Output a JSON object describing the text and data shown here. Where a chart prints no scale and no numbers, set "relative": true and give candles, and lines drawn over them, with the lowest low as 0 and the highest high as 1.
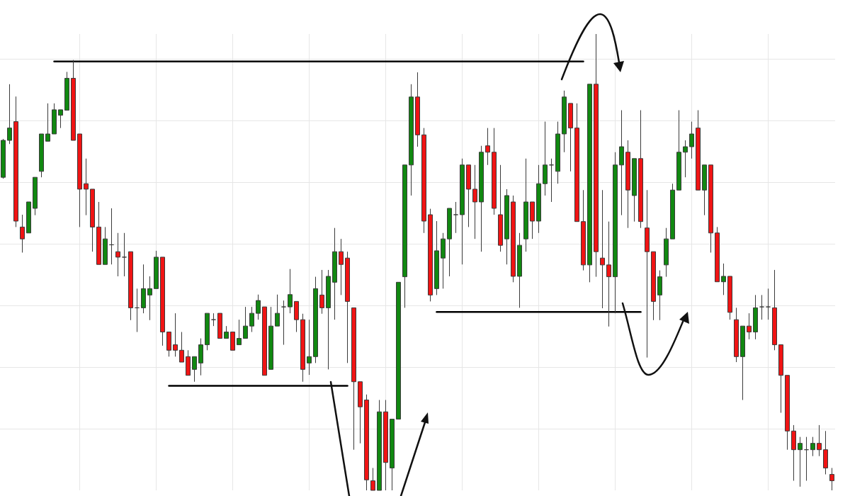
{
  "chart_data": {
    "type": "candlestick",
    "relative": true,
    "grid": true,
    "categories": [
      null,
      null,
      null,
      null,
      null,
      null,
      null,
      null,
      null,
      null,
      null,
      null,
      null,
      null,
      null,
      null,
      null,
      null,
      null,
      null,
      null,
      null,
      null,
      null,
      null,
      null,
      null,
      null,
      null,
      null,
      null,
      null,
      null,
      null,
      null,
      null,
      null,
      null,
      null,
      null,
      null,
      null,
      null,
      null,
      null,
      null,
      null,
      null,
      null,
      null,
      null,
      null,
      null,
      null,
      null,
      null,
      null,
      null,
      null,
      null,
      null,
      null,
      null,
      null,
      null,
      null,
      null,
      null,
      null,
      null,
      null,
      null,
      null,
      null,
      null,
      null,
      null,
      null,
      null,
      null,
      null,
      null,
      null,
      null,
      null,
      null,
      null,
      null,
      null,
      null,
      null,
      null,
      null,
      null,
      null,
      null,
      null,
      null,
      null,
      null,
      null,
      null,
      null,
      null,
      null,
      null,
      null,
      null,
      null,
      null,
      null,
      null,
      null,
      null,
      null,
      null,
      null,
      null,
      null,
      null,
      null,
      null,
      null,
      null,
      null,
      null,
      null,
      null,
      null,
      null,
      null
    ],
    "ohlc": [
      [
        0.686,
        0.77,
        0.683,
        0.767
      ],
      [
        0.767,
        0.89,
        0.759,
        0.794
      ],
      [
        0.808,
        0.863,
        0.577,
        0.59
      ],
      [
        0.577,
        0.604,
        0.521,
        0.551
      ],
      [
        0.564,
        0.632,
        0.564,
        0.632
      ],
      [
        0.618,
        0.686,
        0.603,
        0.686
      ],
      [
        0.699,
        0.781,
        0.686,
        0.781
      ],
      [
        0.765,
        0.848,
        0.765,
        0.781
      ],
      [
        0.781,
        0.848,
        0.781,
        0.834
      ],
      [
        0.822,
        0.834,
        0.794,
        0.834
      ],
      [
        0.833,
        0.917,
        0.833,
        0.903
      ],
      [
        0.903,
        0.943,
        0.767,
        0.767
      ],
      [
        0.781,
        0.781,
        0.577,
        0.66
      ],
      [
        0.672,
        0.727,
        0.603,
        0.66
      ],
      [
        0.66,
        0.66,
        0.523,
        0.577
      ],
      [
        0.577,
        0.632,
        0.495,
        0.495
      ],
      [
        0.495,
        0.577,
        0.495,
        0.551
      ],
      [
        0.538,
        0.618,
        0.495,
        0.538
      ],
      [
        0.523,
        0.564,
        0.469,
        0.511
      ],
      [
        0.511,
        0.564,
        0.469,
        0.511
      ],
      [
        0.523,
        0.523,
        0.373,
        0.4
      ],
      [
        0.4,
        0.442,
        0.347,
        0.4
      ],
      [
        0.4,
        0.495,
        0.388,
        0.442
      ],
      [
        0.428,
        0.469,
        0.373,
        0.442
      ],
      [
        0.442,
        0.525,
        0.442,
        0.511
      ],
      [
        0.511,
        0.511,
        0.317,
        0.347
      ],
      [
        0.347,
        0.347,
        0.293,
        0.307
      ],
      [
        0.319,
        0.388,
        0.293,
        0.307
      ],
      [
        0.307,
        0.347,
        0.281,
        0.281
      ],
      [
        0.293,
        0.307,
        0.252,
        0.252
      ],
      [
        0.265,
        0.293,
        0.238,
        0.293
      ],
      [
        0.279,
        0.333,
        0.252,
        0.319
      ],
      [
        0.319,
        0.388,
        0.307,
        0.388
      ],
      [
        0.374,
        0.388,
        0.36,
        0.374
      ],
      [
        0.388,
        0.388,
        0.333,
        0.333
      ],
      [
        0.333,
        0.36,
        0.333,
        0.347
      ],
      [
        0.347,
        0.347,
        0.307,
        0.307
      ],
      [
        0.319,
        0.374,
        0.319,
        0.333
      ],
      [
        0.333,
        0.402,
        0.333,
        0.36
      ],
      [
        0.36,
        0.402,
        0.347,
        0.388
      ],
      [
        0.388,
        0.429,
        0.374,
        0.416
      ],
      [
        0.402,
        0.402,
        0.252,
        0.252
      ],
      [
        0.265,
        0.402,
        0.265,
        0.36
      ],
      [
        0.36,
        0.429,
        0.36,
        0.388
      ],
      [
        0.402,
        0.416,
        0.319,
        0.402
      ],
      [
        0.402,
        0.485,
        0.388,
        0.429
      ],
      [
        0.414,
        0.414,
        0.347,
        0.374
      ],
      [
        0.374,
        0.387,
        0.238,
        0.265
      ],
      [
        0.279,
        0.374,
        0.253,
        0.293
      ],
      [
        0.293,
        0.468,
        0.279,
        0.442
      ],
      [
        0.428,
        0.483,
        0.387,
        0.4
      ],
      [
        0.4,
        0.483,
        0.265,
        0.469
      ],
      [
        0.456,
        0.575,
        0.374,
        0.523
      ],
      [
        0.523,
        0.551,
        0.428,
        0.495
      ],
      [
        0.509,
        0.523,
        0.279,
        0.414
      ],
      [
        0.4,
        0.4,
        0.089,
        0.238
      ],
      [
        0.238,
        0.238,
        0.103,
        0.183
      ],
      [
        0.198,
        0.21,
        0,
        0.023
      ],
      [
        0.021,
        0.049,
        0,
        0
      ],
      [
        0,
        0.198,
        0,
        0.172
      ],
      [
        0.172,
        0.198,
        0,
        0.061
      ],
      [
        0.049,
        0.156,
        0,
        0.156
      ],
      [
        0.156,
        0.456,
        0.156,
        0.456
      ],
      [
        0.468,
        0.713,
        0.4,
        0.713
      ],
      [
        0.713,
        0.89,
        0.646,
        0.862
      ],
      [
        0.862,
        0.916,
        0.753,
        0.779
      ],
      [
        0.779,
        0.794,
        0.564,
        0.59
      ],
      [
        0.604,
        0.617,
        0.414,
        0.428
      ],
      [
        0.442,
        0.59,
        0.428,
        0.525
      ],
      [
        0.509,
        0.564,
        0.442,
        0.551
      ],
      [
        0.551,
        0.618,
        0.469,
        0.618
      ],
      [
        0.604,
        0.632,
        0.564,
        0.604
      ],
      [
        0.604,
        0.727,
        0.495,
        0.713
      ],
      [
        0.713,
        0.713,
        0.577,
        0.66
      ],
      [
        0.66,
        0.713,
        0.551,
        0.632
      ],
      [
        0.632,
        0.755,
        0.523,
        0.741
      ],
      [
        0.755,
        0.794,
        0.713,
        0.741
      ],
      [
        0.741,
        0.794,
        0.604,
        0.618
      ],
      [
        0.604,
        0.713,
        0.523,
        0.537
      ],
      [
        0.551,
        0.66,
        0.495,
        0.646
      ],
      [
        0.632,
        0.646,
        0.456,
        0.469
      ],
      [
        0.469,
        0.564,
        0.4,
        0.537
      ],
      [
        0.551,
        0.727,
        0.523,
        0.632
      ],
      [
        0.632,
        0.632,
        0.551,
        0.59
      ],
      [
        0.59,
        0.713,
        0.564,
        0.672
      ],
      [
        0.672,
        0.808,
        0.646,
        0.713
      ],
      [
        0.713,
        0.727,
        0.632,
        0.713
      ],
      [
        0.699,
        0.808,
        0.672,
        0.781
      ],
      [
        0.781,
        0.876,
        0.741,
        0.862
      ],
      [
        0.848,
        0.848,
        0.699,
        0.794
      ],
      [
        0.794,
        0.848,
        0.589,
        0.589
      ],
      [
        0.589,
        0.658,
        0.482,
        0.494
      ],
      [
        0.494,
        0.89,
        0.456,
        0.89
      ],
      [
        0.89,
        1,
        0.468,
        0.523
      ],
      [
        0.509,
        0.658,
        0.399,
        0.494
      ],
      [
        0.494,
        0.589,
        0.359,
        0.468
      ],
      [
        0.468,
        0.741,
        0.388,
        0.713
      ],
      [
        0.713,
        0.833,
        0.603,
        0.753
      ],
      [
        0.741,
        0.767,
        0.575,
        0.658
      ],
      [
        0.646,
        0.727,
        0.589,
        0.727
      ],
      [
        0.727,
        0.833,
        0.575,
        0.589
      ],
      [
        0.575,
        0.658,
        0.291,
        0.523
      ],
      [
        0.523,
        0.523,
        0.373,
        0.414
      ],
      [
        0.428,
        0.482,
        0.373,
        0.468
      ],
      [
        0.494,
        0.575,
        0.468,
        0.551
      ],
      [
        0.551,
        0.672,
        0.551,
        0.658
      ],
      [
        0.658,
        0.833,
        0.658,
        0.741
      ],
      [
        0.741,
        0.767,
        0.686,
        0.753
      ],
      [
        0.753,
        0.808,
        0.727,
        0.781
      ],
      [
        0.794,
        0.833,
        0.658,
        0.658
      ],
      [
        0.658,
        0.713,
        0.603,
        0.713
      ],
      [
        0.713,
        0.713,
        0.521,
        0.564
      ],
      [
        0.564,
        0.577,
        0.457,
        0.457
      ],
      [
        0.457,
        0.497,
        0.428,
        0.469
      ],
      [
        0.469,
        0.469,
        0.374,
        0.39
      ],
      [
        0.374,
        0.4,
        0.281,
        0.293
      ],
      [
        0.293,
        0.36,
        0.198,
        0.36
      ],
      [
        0.36,
        0.388,
        0.331,
        0.347
      ],
      [
        0.347,
        0.428,
        0.331,
        0.4
      ],
      [
        0.402,
        0.428,
        0.374,
        0.402
      ],
      [
        0.402,
        0.442,
        0.374,
        0.402
      ],
      [
        0.4,
        0.483,
        0.307,
        0.319
      ],
      [
        0.319,
        0.319,
        0.17,
        0.252
      ],
      [
        0.252,
        0.252,
        0.089,
        0.13
      ],
      [
        0.13,
        0.143,
        0.021,
        0.089
      ],
      [
        0.089,
        0.117,
        0.008,
        0.103
      ],
      [
        0.089,
        0.117,
        0.021,
        0.089
      ],
      [
        0.089,
        0.117,
        0.075,
        0.103
      ],
      [
        0.103,
        0.143,
        0.075,
        0.089
      ],
      [
        0.089,
        0.13,
        0.035,
        0.049
      ],
      [
        0.035,
        0.049,
        0,
        0.021
      ]
    ],
    "colors": [
      "#118811",
      "#118811",
      "#f01414",
      "#f01414",
      "#118811",
      "#118811",
      "#118811",
      "#118811",
      "#118811",
      "#118811",
      "#118811",
      "#f01414",
      "#f01414",
      "#f01414",
      "#f01414",
      "#f01414",
      "#118811",
      "#3a3a3a",
      "#f01414",
      "#3a3a3a",
      "#f01414",
      "#3a3a3a",
      "#118811",
      "#118811",
      "#118811",
      "#f01414",
      "#f01414",
      "#f01414",
      "#f01414",
      "#f01414",
      "#118811",
      "#118811",
      "#118811",
      "#3a3a3a",
      "#f01414",
      "#118811",
      "#f01414",
      "#118811",
      "#118811",
      "#118811",
      "#118811",
      "#f01414",
      "#118811",
      "#118811",
      "#3a3a3a",
      "#118811",
      "#f01414",
      "#f01414",
      "#118811",
      "#118811",
      "#f01414",
      "#118811",
      "#118811",
      "#f01414",
      "#f01414",
      "#f01414",
      "#f01414",
      "#f01414",
      "#f01414",
      "#118811",
      "#f01414",
      "#118811",
      "#118811",
      "#118811",
      "#118811",
      "#f01414",
      "#f01414",
      "#f01414",
      "#118811",
      "#118811",
      "#118811",
      "#3a3a3a",
      "#118811",
      "#f01414",
      "#f01414",
      "#118811",
      "#f01414",
      "#f01414",
      "#f01414",
      "#118811",
      "#f01414",
      "#118811",
      "#118811",
      "#f01414",
      "#118811",
      "#118811",
      "#3a3a3a",
      "#118811",
      "#118811",
      "#f01414",
      "#f01414",
      "#f01414",
      "#118811",
      "#f01414",
      "#f01414",
      "#f01414",
      "#118811",
      "#118811",
      "#f01414",
      "#118811",
      "#f01414",
      "#f01414",
      "#f01414",
      "#118811",
      "#118811",
      "#118811",
      "#118811",
      "#118811",
      "#118811",
      "#f01414",
      "#118811",
      "#f01414",
      "#f01414",
      "#118811",
      "#f01414",
      "#f01414",
      "#118811",
      "#f01414",
      "#118811",
      "#3a3a3a",
      "#3a3a3a",
      "#f01414",
      "#f01414",
      "#f01414",
      "#f01414",
      "#118811",
      "#3a3a3a",
      "#118811",
      "#f01414",
      "#f01414",
      "#f01414"
    ],
    "series": [
      {
        "type": "line",
        "color": "#000000",
        "values": [
          null,
          null,
          null,
          null,
          null,
          null,
          null,
          null,
          0.94,
          0.94,
          0.94,
          0.94,
          0.94,
          0.94,
          0.94,
          0.94,
          0.94,
          0.94,
          0.94,
          0.94,
          0.94,
          0.94,
          0.94,
          0.94,
          0.94,
          0.94,
          0.94,
          0.94,
          0.94,
          0.94,
          0.94,
          0.94,
          0.94,
          0.94,
          0.94,
          0.94,
          0.94,
          0.94,
          0.94,
          0.94,
          0.94,
          0.94,
          0.94,
          0.94,
          0.94,
          0.94,
          0.94,
          0.94,
          0.94,
          0.94,
          0.94,
          0.94,
          0.94,
          0.94,
          0.94,
          0.94,
          0.94,
          0.94,
          0.94,
          0.94,
          0.94,
          0.94,
          0.94,
          0.94,
          0.94,
          0.94,
          0.94,
          0.94,
          0.94,
          0.94,
          0.94,
          0.94,
          0.94,
          0.94,
          0.94,
          0.94,
          0.94,
          0.94,
          0.94,
          0.94,
          0.94,
          0.94,
          0.94,
          0.94,
          0.94,
          0.94,
          0.94,
          0.94,
          0.94,
          0.94,
          0.94,
          0.94,
          null,
          null,
          null,
          null,
          null,
          null,
          null,
          null,
          null,
          null,
          null,
          null,
          null,
          null,
          null,
          null,
          null,
          null,
          null,
          null,
          null,
          null,
          null,
          null,
          null,
          null,
          null,
          null,
          null,
          null,
          null,
          null,
          null,
          null,
          null,
          null,
          null,
          null,
          null
        ]
      },
      {
        "type": "line",
        "color": "#000000",
        "values": [
          null,
          null,
          null,
          null,
          null,
          null,
          null,
          null,
          null,
          null,
          null,
          null,
          null,
          null,
          null,
          null,
          null,
          null,
          null,
          null,
          null,
          null,
          null,
          null,
          null,
          null,
          0.229,
          0.229,
          0.229,
          0.229,
          0.229,
          0.229,
          0.229,
          0.229,
          0.229,
          0.229,
          0.229,
          0.229,
          0.229,
          0.229,
          0.229,
          0.229,
          0.229,
          0.229,
          0.229,
          0.229,
          0.229,
          0.229,
          0.229,
          0.229,
          0.229,
          0.229,
          0.229,
          0.229,
          0.229,
          null,
          null,
          null,
          null,
          null,
          null,
          null,
          null,
          null,
          null,
          null,
          null,
          null,
          null,
          null,
          null,
          null,
          null,
          null,
          null,
          null,
          null,
          null,
          null,
          null,
          null,
          null,
          null,
          null,
          null,
          null,
          null,
          null,
          null,
          null,
          null,
          null,
          null,
          null,
          null,
          null,
          null,
          null,
          null,
          null,
          null,
          null,
          null,
          null,
          null,
          null,
          null,
          null,
          null,
          null,
          null,
          null,
          null,
          null,
          null,
          null,
          null,
          null,
          null,
          null,
          null,
          null,
          null,
          null,
          null,
          null,
          null,
          null,
          null,
          null,
          null
        ]
      },
      {
        "type": "line",
        "color": "#000000",
        "values": [
          null,
          null,
          null,
          null,
          null,
          null,
          null,
          null,
          null,
          null,
          null,
          null,
          null,
          null,
          null,
          null,
          null,
          null,
          null,
          null,
          null,
          null,
          null,
          null,
          null,
          null,
          null,
          null,
          null,
          null,
          null,
          null,
          null,
          null,
          null,
          null,
          null,
          null,
          null,
          null,
          null,
          null,
          null,
          null,
          null,
          null,
          null,
          null,
          null,
          null,
          null,
          null,
          null,
          null,
          null,
          null,
          null,
          null,
          null,
          null,
          null,
          null,
          null,
          null,
          null,
          null,
          null,
          null,
          0.391,
          0.391,
          0.391,
          0.391,
          0.391,
          0.391,
          0.391,
          0.391,
          0.391,
          0.391,
          0.391,
          0.391,
          0.391,
          0.391,
          0.391,
          0.391,
          0.391,
          0.391,
          0.391,
          0.391,
          0.391,
          0.391,
          0.391,
          0.391,
          0.391,
          0.391,
          0.391,
          0.391,
          0.391,
          0.391,
          0.391,
          0.391,
          0.391,
          null,
          null,
          null,
          null,
          null,
          null,
          null,
          null,
          null,
          null,
          null,
          null,
          null,
          null,
          null,
          null,
          null,
          null,
          null,
          null,
          null,
          null,
          null,
          null,
          null,
          null,
          null,
          null,
          null,
          null
        ]
      }
    ]
  }
}
